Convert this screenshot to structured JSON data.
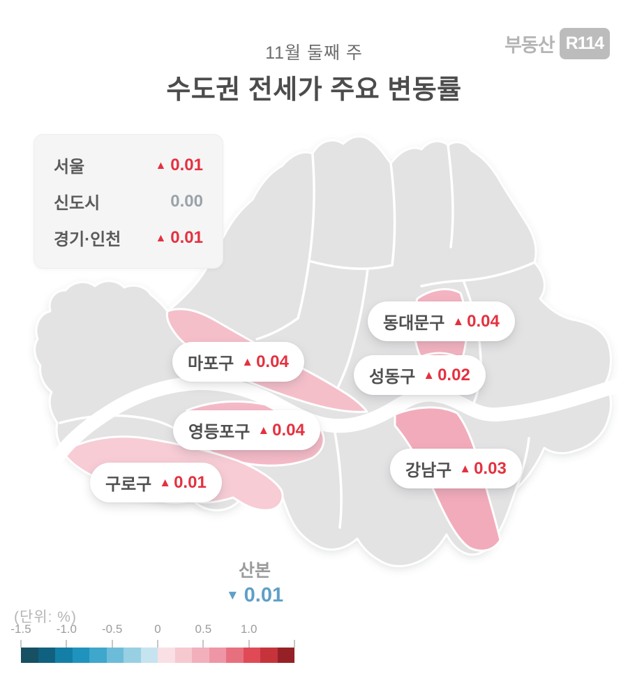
{
  "header": {
    "subtitle": "11월 둘째 주",
    "title": "수도권 전세가 주요 변동률"
  },
  "logo": {
    "text": "부동산",
    "badge": "R114"
  },
  "glyphs": {
    "up": "▲",
    "down": "▼"
  },
  "colors": {
    "up": "#e4313f",
    "down": "#5f9fc7",
    "neutral": "#9aa2a8",
    "map_gray": "#e3e3e4",
    "river": "#ffffff"
  },
  "summary": {
    "rows": [
      {
        "label": "서울",
        "direction": "up",
        "value": "0.01"
      },
      {
        "label": "신도시",
        "direction": "flat",
        "value": "0.00"
      },
      {
        "label": "경기·인천",
        "direction": "up",
        "value": "0.01"
      }
    ]
  },
  "map": {
    "districts": [
      {
        "name": "동대문구",
        "direction": "up",
        "value": "0.04",
        "fill": "#f4b3c1"
      },
      {
        "name": "마포구",
        "direction": "up",
        "value": "0.04",
        "fill": "#f5bfca"
      },
      {
        "name": "성동구",
        "direction": "up",
        "value": "0.02",
        "fill": "#f2abba"
      },
      {
        "name": "영등포구",
        "direction": "up",
        "value": "0.04",
        "fill": "#f5bac7"
      },
      {
        "name": "구로구",
        "direction": "up",
        "value": "0.01",
        "fill": "#f7ccd5"
      },
      {
        "name": "강남구",
        "direction": "up",
        "value": "0.03",
        "fill": "#f2abba"
      }
    ],
    "sanbon": {
      "name": "산본",
      "direction": "down",
      "value": "0.01"
    }
  },
  "legend": {
    "unit_label": "(단위:  %)",
    "ticks": [
      {
        "label": "-1.5",
        "pos": 0
      },
      {
        "label": "-1.0",
        "pos": 0.1667
      },
      {
        "label": "-0.5",
        "pos": 0.3333
      },
      {
        "label": "0",
        "pos": 0.5
      },
      {
        "label": "0.5",
        "pos": 0.6667
      },
      {
        "label": "1.0",
        "pos": 0.8333
      },
      {
        "label": "",
        "pos": 1
      }
    ],
    "colors": [
      "#174f63",
      "#10607f",
      "#137fa6",
      "#1f93bd",
      "#3fa6cc",
      "#6cbcd9",
      "#98cfe3",
      "#c6e4ef",
      "#f9e0e4",
      "#f6c9d1",
      "#f2b0bc",
      "#ee96a5",
      "#e7707f",
      "#e04a56",
      "#c6333b",
      "#952127"
    ]
  },
  "chart_data": {
    "type": "heatmap",
    "title": "수도권 전세가 주요 변동률 (11월 둘째 주)",
    "unit": "%",
    "scale_domain": [
      -1.5,
      1.5
    ],
    "regions": [
      "서울",
      "신도시",
      "경기·인천",
      "동대문구",
      "마포구",
      "성동구",
      "영등포구",
      "구로구",
      "강남구",
      "산본"
    ],
    "values": [
      0.01,
      0.0,
      0.01,
      0.04,
      0.04,
      0.02,
      0.04,
      0.01,
      0.03,
      -0.01
    ]
  }
}
